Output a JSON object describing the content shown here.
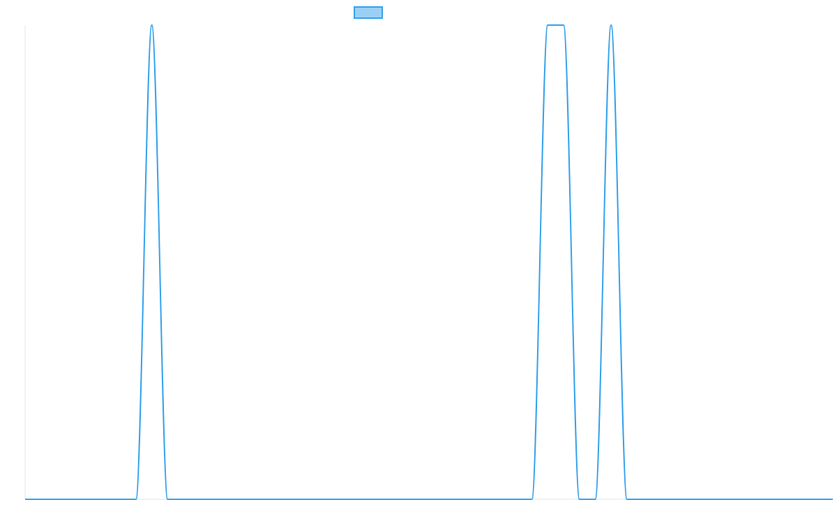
{
  "chart_data": {
    "type": "line",
    "title": "",
    "xlabel": "",
    "ylabel": "",
    "x": [
      0,
      1,
      2,
      3,
      4,
      5,
      6,
      7,
      8,
      9,
      10,
      11,
      12,
      13,
      14,
      15,
      16,
      17,
      18,
      19,
      20,
      21,
      22,
      23,
      24,
      25,
      26,
      27,
      28,
      29,
      30,
      31,
      32,
      33,
      34,
      35,
      36,
      37,
      38,
      39,
      40,
      41,
      42,
      43,
      44,
      45,
      46,
      47,
      48,
      49,
      50,
      51
    ],
    "series": [
      {
        "name": "",
        "color": "#36a2eb",
        "fill": "#9ad0f5",
        "values": [
          0,
          0,
          0,
          0,
          0,
          0,
          0,
          0,
          1,
          0,
          0,
          0,
          0,
          0,
          0,
          0,
          0,
          0,
          0,
          0,
          0,
          0,
          0,
          0,
          0,
          0,
          0,
          0,
          0,
          0,
          0,
          0,
          0,
          1,
          1,
          0,
          0,
          1,
          0,
          0,
          0,
          0,
          0,
          0,
          0,
          0,
          0,
          0,
          0,
          0,
          0,
          0
        ]
      }
    ],
    "ylim": [
      0,
      1
    ],
    "grid": false,
    "legend": "top"
  }
}
